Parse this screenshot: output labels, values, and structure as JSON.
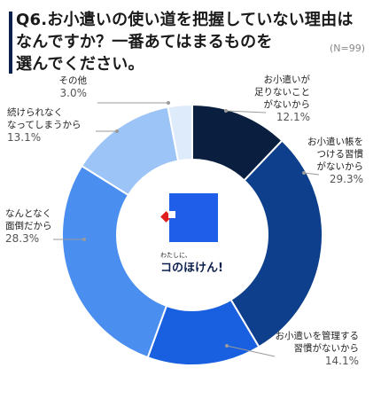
{
  "header": {
    "title_lines": [
      "Q6.お小遣いの使い道を把握していない理由は",
      "なんですか？一番あてはまるものを",
      "選んでください。"
    ],
    "sample_note": "(N=99)"
  },
  "center_logo": {
    "tagline": "わたしに、",
    "brand": "コのほけん!",
    "colors": {
      "square": "#1f5ee8",
      "accent": "#e02020"
    }
  },
  "chart_data": {
    "type": "pie",
    "title": "Q6.お小遣いの使い道を把握していない理由はなんですか？一番あてはまるものを選んでください。",
    "sample_size": "(N=99)",
    "donut": true,
    "unit": "%",
    "slices": [
      {
        "label": "お小遣いが足りないことがないから",
        "label_lines": [
          "お小遣いが",
          "足りないこと",
          "がないから"
        ],
        "value": 12.1,
        "value_label": "12.1%",
        "color": "#0a1f3f"
      },
      {
        "label": "お小遣い帳をつける習慣がないから",
        "label_lines": [
          "お小遣い帳を",
          "つける習慣",
          "がないから"
        ],
        "value": 29.3,
        "value_label": "29.3%",
        "color": "#0e3f8c"
      },
      {
        "label": "お小遣いを管理する習慣がないから",
        "label_lines": [
          "お小遣いを管理する",
          "習慣がないから"
        ],
        "value": 14.1,
        "value_label": "14.1%",
        "color": "#1960e0"
      },
      {
        "label": "なんとなく面倒だから",
        "label_lines": [
          "なんとなく",
          "面倒だから"
        ],
        "value": 28.3,
        "value_label": "28.3%",
        "color": "#4a8ef0"
      },
      {
        "label": "続けられなくなってしまうから",
        "label_lines": [
          "続けられなく",
          "なってしまうから"
        ],
        "value": 13.1,
        "value_label": "13.1%",
        "color": "#9cc4f7"
      },
      {
        "label": "その他",
        "label_lines": [
          "その他"
        ],
        "value": 3.0,
        "value_label": "3.0%",
        "color": "#deebfb"
      }
    ]
  }
}
